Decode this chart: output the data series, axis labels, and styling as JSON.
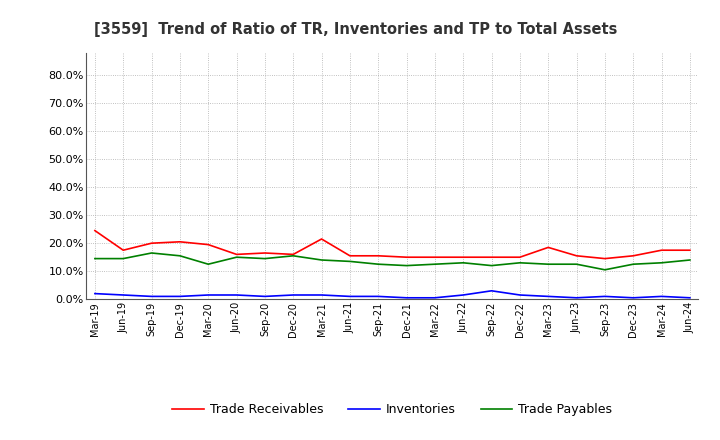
{
  "title": "[3559]  Trend of Ratio of TR, Inventories and TP to Total Assets",
  "labels": [
    "Mar-19",
    "Jun-19",
    "Sep-19",
    "Dec-19",
    "Mar-20",
    "Jun-20",
    "Sep-20",
    "Dec-20",
    "Mar-21",
    "Jun-21",
    "Sep-21",
    "Dec-21",
    "Mar-22",
    "Jun-22",
    "Sep-22",
    "Dec-22",
    "Mar-23",
    "Jun-23",
    "Sep-23",
    "Dec-23",
    "Mar-24",
    "Jun-24"
  ],
  "trade_receivables": [
    0.245,
    0.175,
    0.2,
    0.205,
    0.195,
    0.16,
    0.165,
    0.16,
    0.215,
    0.155,
    0.155,
    0.15,
    0.15,
    0.15,
    0.15,
    0.15,
    0.185,
    0.155,
    0.145,
    0.155,
    0.175,
    0.175
  ],
  "inventories": [
    0.02,
    0.015,
    0.01,
    0.01,
    0.015,
    0.015,
    0.01,
    0.015,
    0.015,
    0.01,
    0.01,
    0.005,
    0.005,
    0.015,
    0.03,
    0.015,
    0.01,
    0.005,
    0.01,
    0.005,
    0.01,
    0.005
  ],
  "trade_payables": [
    0.145,
    0.145,
    0.165,
    0.155,
    0.125,
    0.15,
    0.145,
    0.155,
    0.14,
    0.135,
    0.125,
    0.12,
    0.125,
    0.13,
    0.12,
    0.13,
    0.125,
    0.125,
    0.105,
    0.125,
    0.13,
    0.14
  ],
  "tr_color": "#FF0000",
  "inv_color": "#0000FF",
  "tp_color": "#008000",
  "ylim_max": 0.88,
  "yticks": [
    0.0,
    0.1,
    0.2,
    0.3,
    0.4,
    0.5,
    0.6,
    0.7,
    0.8
  ],
  "background_color": "#FFFFFF",
  "grid_color": "#999999",
  "legend_labels": [
    "Trade Receivables",
    "Inventories",
    "Trade Payables"
  ]
}
